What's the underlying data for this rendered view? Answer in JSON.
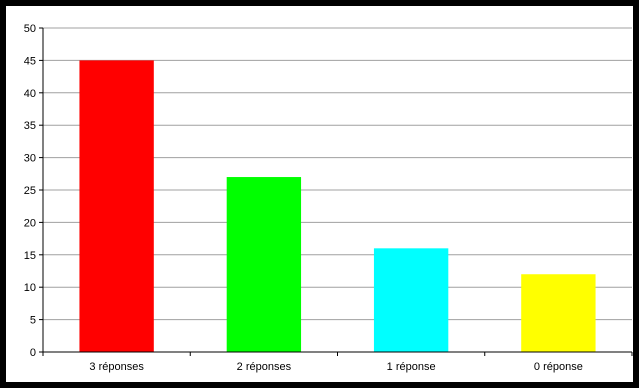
{
  "chart_data": {
    "type": "bar",
    "categories": [
      "3 réponses",
      "2 réponses",
      "1 réponse",
      "0 réponse"
    ],
    "values": [
      45,
      27,
      16,
      12
    ],
    "colors": [
      "#ff0000",
      "#00ff00",
      "#00ffff",
      "#ffff00"
    ],
    "ylim": [
      0,
      50
    ],
    "yticks": [
      0,
      5,
      10,
      15,
      20,
      25,
      30,
      35,
      40,
      45,
      50
    ],
    "grid": true,
    "legend": false,
    "title": "",
    "xlabel": "",
    "ylabel": ""
  }
}
